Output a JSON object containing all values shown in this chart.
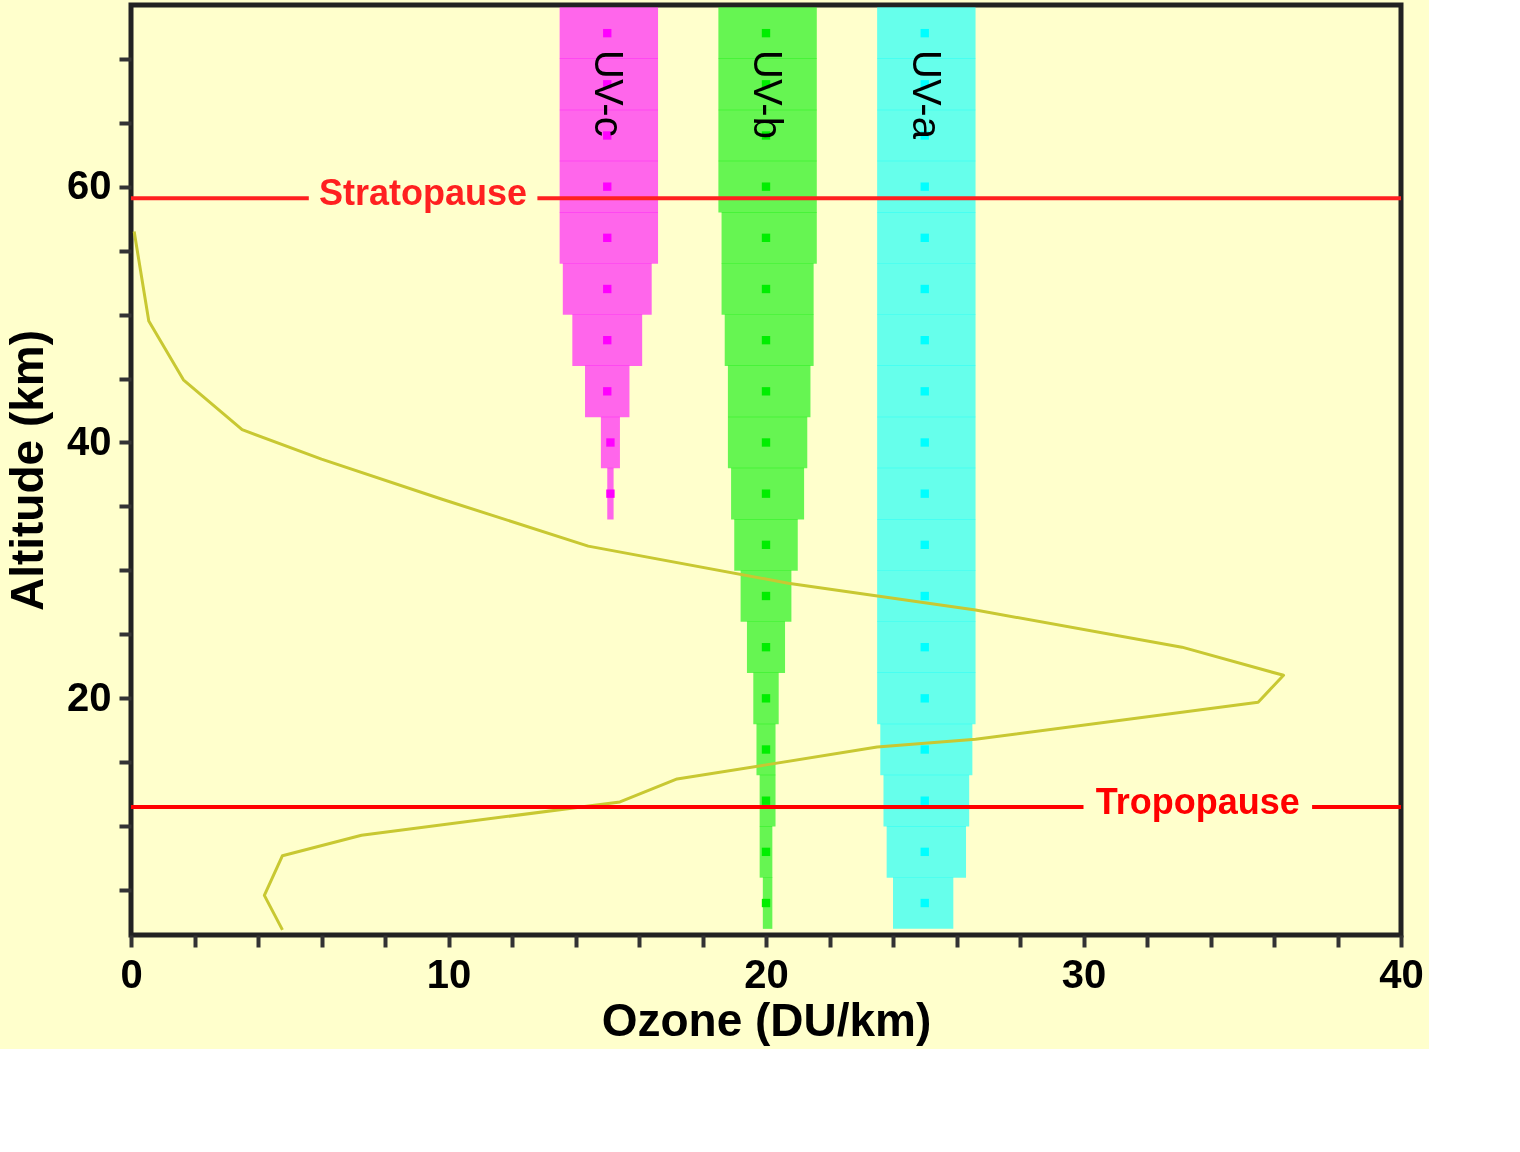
{
  "chart_data": {
    "type": "line",
    "xlabel": "Ozone (DU/km)",
    "ylabel": "Altitude (km)",
    "xlim": [
      0,
      40
    ],
    "ylim": [
      1.5,
      74.2
    ],
    "xticks": [
      0,
      {
        "value": 2,
        "label": null
      },
      {
        "value": 4,
        "label": null
      },
      {
        "value": 6,
        "label": null
      },
      {
        "value": 8,
        "label": null
      },
      10,
      {
        "value": 12,
        "label": null
      },
      {
        "value": 14,
        "label": null
      },
      {
        "value": 16,
        "label": null
      },
      {
        "value": 18,
        "label": null
      },
      20,
      {
        "value": 22,
        "label": null
      },
      {
        "value": 24,
        "label": null
      },
      {
        "value": 26,
        "label": null
      },
      {
        "value": 28,
        "label": null
      },
      30,
      {
        "value": 32,
        "label": null
      },
      {
        "value": 34,
        "label": null
      },
      {
        "value": 36,
        "label": null
      },
      {
        "value": 38,
        "label": null
      },
      40
    ],
    "yticks": [
      {
        "value": 5,
        "label": null
      },
      {
        "value": 10,
        "label": null
      },
      {
        "value": 15,
        "label": null
      },
      20,
      {
        "value": 25,
        "label": null
      },
      {
        "value": 30,
        "label": null
      },
      {
        "value": 35,
        "label": null
      },
      40,
      {
        "value": 45,
        "label": null
      },
      {
        "value": 50,
        "label": null
      },
      {
        "value": 55,
        "label": null
      },
      60,
      {
        "value": 65,
        "label": null
      },
      {
        "value": 70,
        "label": null
      }
    ],
    "grid": false,
    "series": [
      {
        "type": "scatter",
        "name": "UV-c",
        "color": "#ff00ff",
        "marker": "square",
        "x": [
          15.0,
          15.0,
          15.0,
          15.0,
          15.0,
          15.0,
          15.0,
          15.0,
          15.1,
          15.1
        ],
        "values": [
          72,
          68,
          64,
          60,
          56,
          52,
          48,
          44,
          40,
          36
        ],
        "xerrors": [
          [
            13.5,
            16.6
          ],
          [
            13.5,
            16.6
          ],
          [
            13.5,
            16.6
          ],
          [
            13.5,
            16.6
          ],
          [
            13.5,
            16.6
          ],
          [
            13.6,
            16.4
          ],
          [
            13.9,
            16.1
          ],
          [
            14.3,
            15.7
          ],
          [
            14.8,
            15.4
          ],
          [
            15.0,
            15.2
          ]
        ]
      },
      {
        "type": "scatter",
        "name": "UV-b",
        "color": "#00ee00",
        "marker": "square",
        "x": [
          20.0,
          20.0,
          20.0,
          20.0,
          20.0,
          20.0,
          20.0,
          20.0,
          20.0,
          20.0,
          20.0,
          20.0,
          20.0,
          20.0,
          20.0,
          20.0,
          20.0,
          20.0
        ],
        "values": [
          72,
          68,
          64,
          60,
          56,
          52,
          48,
          44,
          40,
          36,
          32,
          28,
          24,
          20,
          16,
          12,
          8,
          4
        ],
        "xerrors": [
          [
            18.5,
            21.6
          ],
          [
            18.5,
            21.6
          ],
          [
            18.5,
            21.6
          ],
          [
            18.5,
            21.6
          ],
          [
            18.6,
            21.6
          ],
          [
            18.6,
            21.5
          ],
          [
            18.7,
            21.5
          ],
          [
            18.8,
            21.4
          ],
          [
            18.8,
            21.3
          ],
          [
            18.9,
            21.2
          ],
          [
            19.0,
            21.0
          ],
          [
            19.2,
            20.8
          ],
          [
            19.4,
            20.6
          ],
          [
            19.6,
            20.4
          ],
          [
            19.7,
            20.3
          ],
          [
            19.8,
            20.3
          ],
          [
            19.8,
            20.2
          ],
          [
            19.9,
            20.2
          ]
        ]
      },
      {
        "type": "scatter",
        "name": "UV-a",
        "color": "#00ffff",
        "marker": "square",
        "x": [
          25.0,
          25.0,
          25.0,
          25.0,
          25.0,
          25.0,
          25.0,
          25.0,
          25.0,
          25.0,
          25.0,
          25.0,
          25.0,
          25.0,
          25.0,
          25.0,
          25.0,
          25.0
        ],
        "values": [
          72,
          68,
          64,
          60,
          56,
          52,
          48,
          44,
          40,
          36,
          32,
          28,
          24,
          20,
          16,
          12,
          8,
          4
        ],
        "xerrors": [
          [
            23.5,
            26.6
          ],
          [
            23.5,
            26.6
          ],
          [
            23.5,
            26.6
          ],
          [
            23.5,
            26.6
          ],
          [
            23.5,
            26.6
          ],
          [
            23.5,
            26.6
          ],
          [
            23.5,
            26.6
          ],
          [
            23.5,
            26.6
          ],
          [
            23.5,
            26.6
          ],
          [
            23.5,
            26.6
          ],
          [
            23.5,
            26.6
          ],
          [
            23.5,
            26.6
          ],
          [
            23.5,
            26.6
          ],
          [
            23.5,
            26.6
          ],
          [
            23.6,
            26.5
          ],
          [
            23.7,
            26.4
          ],
          [
            23.8,
            26.3
          ],
          [
            24.0,
            25.9
          ]
        ]
      },
      {
        "color": "#c8c832",
        "line_style": "solid",
        "x": [
          4.77,
          4.2,
          4.77,
          7.26,
          15.4,
          17.2,
          20.0,
          23.5,
          26.6,
          35.5,
          36.3,
          33.1,
          26.6,
          20.7,
          14.4,
          9.75,
          6.0,
          3.5,
          1.65,
          0.56,
          0.25,
          0.1
        ],
        "values": [
          1.9,
          4.6,
          7.7,
          9.3,
          11.9,
          13.7,
          14.8,
          16.2,
          16.8,
          19.7,
          21.8,
          24.0,
          26.9,
          29.0,
          31.9,
          35.6,
          38.7,
          41.0,
          44.9,
          49.5,
          54.2,
          56.5
        ]
      }
    ],
    "ref_lines": [
      {
        "axis": "y",
        "value": 59.1,
        "label": "Stratopause",
        "color": "#ff2020"
      },
      {
        "axis": "y",
        "value": 11.5,
        "label": "Tropopause",
        "color": "#ff0000"
      }
    ]
  }
}
